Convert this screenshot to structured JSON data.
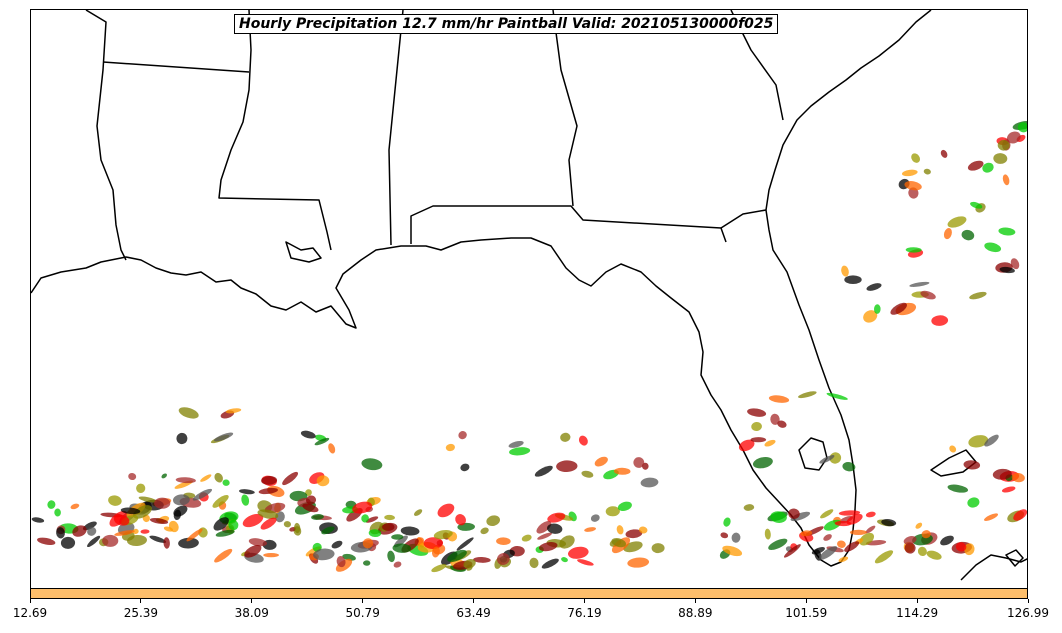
{
  "title": "Hourly Precipitation 12.7 mm/hr Paintball Valid: 202105130000f025",
  "colorbar": {
    "color": "#fdbe6b",
    "tick_labels": [
      "12.69",
      "25.39",
      "38.09",
      "50.79",
      "63.49",
      "76.19",
      "88.89",
      "101.59",
      "114.29",
      "126.99"
    ]
  },
  "member_colors": [
    "#ff0000",
    "#ff6600",
    "#ff9900",
    "#8b0000",
    "#a52a2a",
    "#006400",
    "#00cc00",
    "#808000",
    "#999900",
    "#000000",
    "#555555"
  ],
  "map": {
    "region": "US Gulf Coast and Florida",
    "boundaries": [
      "coastline",
      "state-borders"
    ],
    "features": [
      "Louisiana",
      "Mississippi",
      "Alabama",
      "Georgia",
      "Florida",
      "Gulf of Mexico",
      "Atlantic Ocean",
      "Bahamas",
      "Cuba"
    ]
  }
}
